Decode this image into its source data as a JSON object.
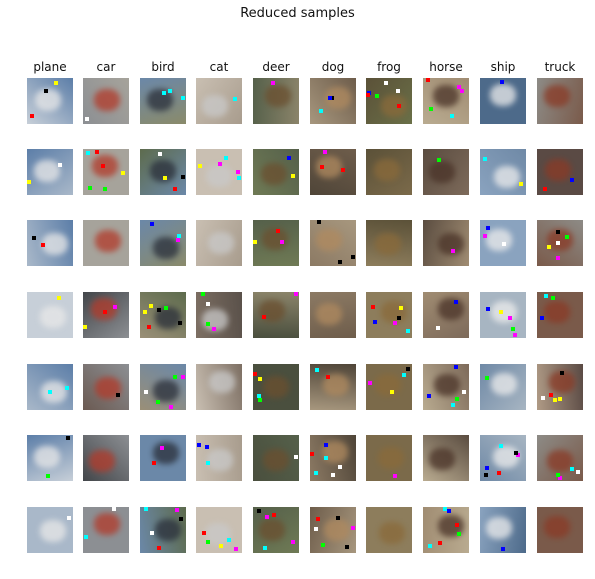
{
  "title": "Reduced samples",
  "classes": [
    "plane",
    "car",
    "bird",
    "cat",
    "deer",
    "dog",
    "frog",
    "horse",
    "ship",
    "truck"
  ],
  "palette": {
    "sky": "#6f8fb5",
    "earth": "#7b6a4f",
    "grass": "#6d7a4a",
    "gray": "#8b8b8b",
    "dark": "#2e2a26",
    "light": "#d9d4cc"
  }
}
